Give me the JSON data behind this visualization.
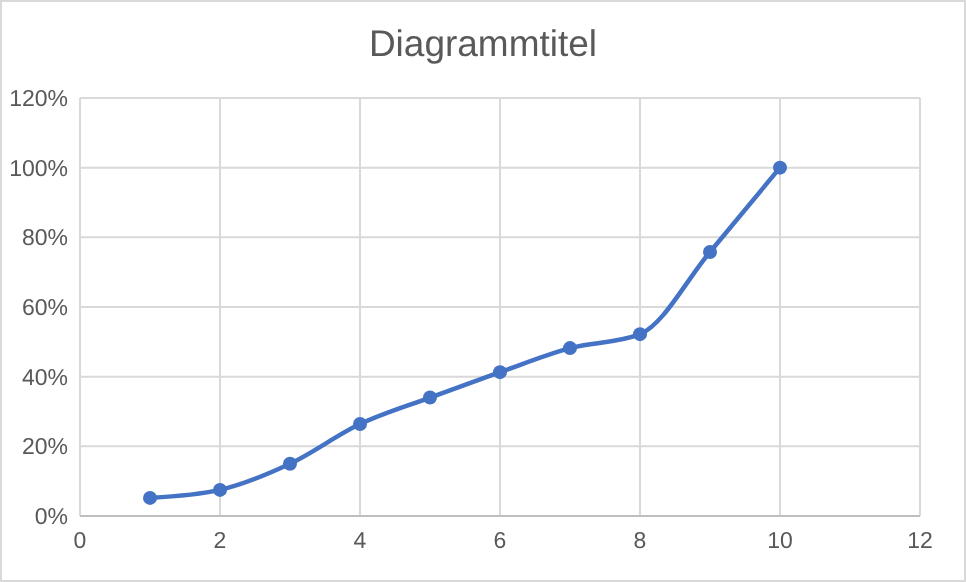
{
  "chart_data": {
    "type": "line",
    "title": "Diagrammtitel",
    "x": [
      1,
      2,
      3,
      4,
      5,
      6,
      7,
      8,
      9,
      10
    ],
    "series": [
      {
        "color": "#4472c4",
        "values": [
          0.052,
          0.075,
          0.15,
          0.264,
          0.34,
          0.413,
          0.482,
          0.522,
          0.758,
          1.0
        ]
      }
    ],
    "xlim": [
      0,
      12
    ],
    "xticks": [
      0,
      2,
      4,
      6,
      8,
      10,
      12
    ],
    "ylim": [
      0,
      1.2
    ],
    "yticks": [
      {
        "value": 0,
        "label": "0%"
      },
      {
        "value": 0.2,
        "label": "20%"
      },
      {
        "value": 0.4,
        "label": "40%"
      },
      {
        "value": 0.6,
        "label": "60%"
      },
      {
        "value": 0.8,
        "label": "80%"
      },
      {
        "value": 1.0,
        "label": "100%"
      },
      {
        "value": 1.2,
        "label": "120%"
      }
    ],
    "grid": true,
    "marker": "circle",
    "line_style": "solid"
  }
}
